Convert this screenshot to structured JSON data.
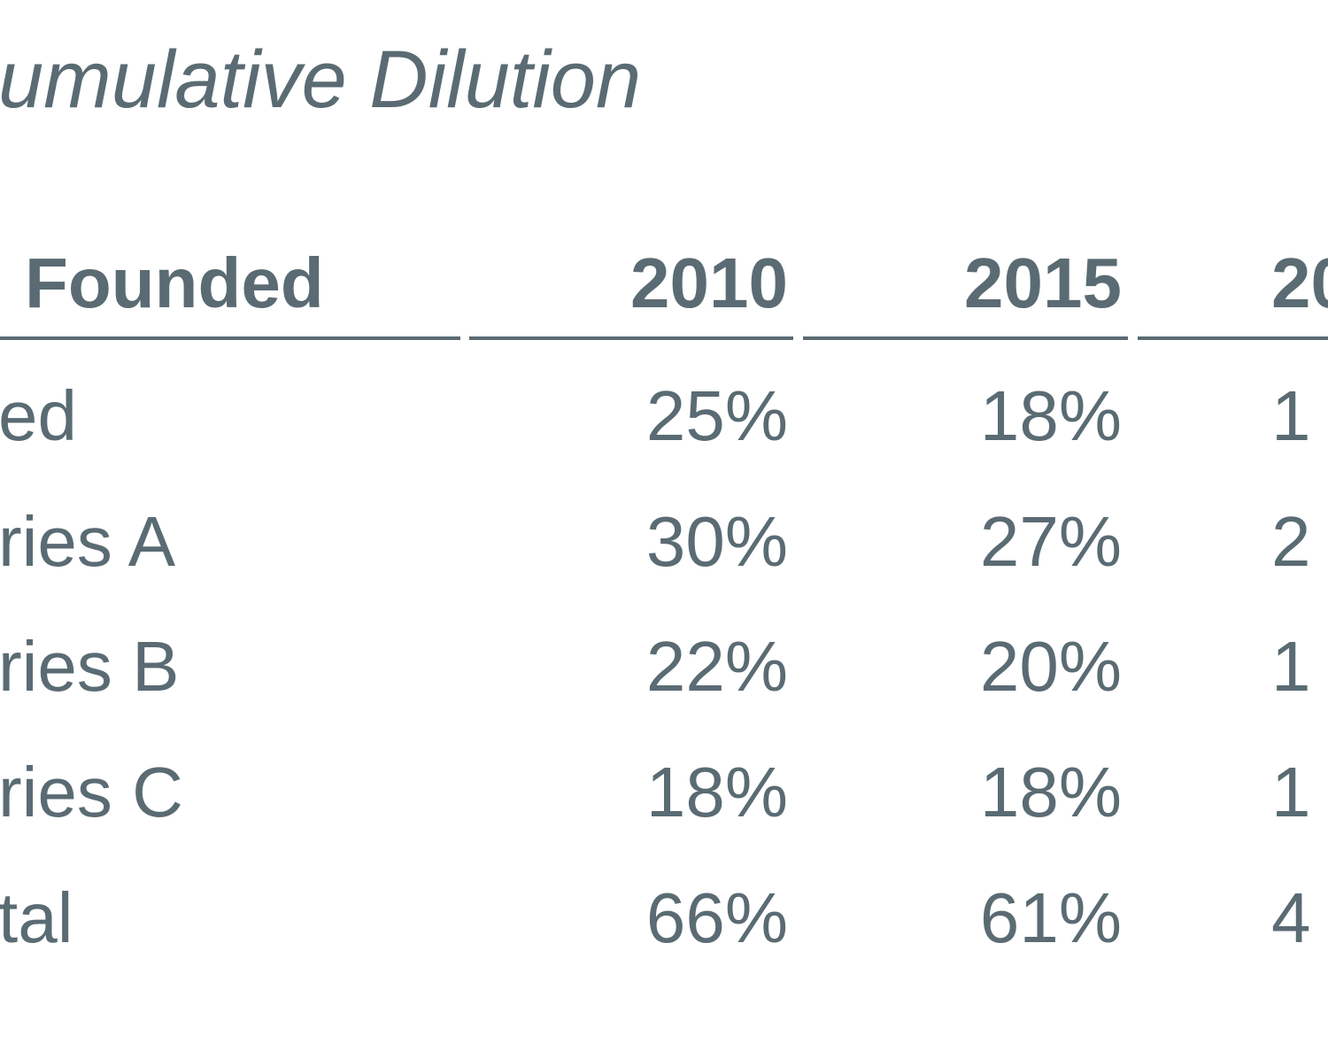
{
  "chart_data": {
    "type": "table",
    "title": "umulative Dilution",
    "columns": [
      "Founded",
      "2010",
      "2015",
      "20"
    ],
    "rows": [
      {
        "label": "ed",
        "values": [
          "25%",
          "18%",
          "1"
        ]
      },
      {
        "label": "ries A",
        "values": [
          "30%",
          "27%",
          "2"
        ]
      },
      {
        "label": "ries B",
        "values": [
          "22%",
          "20%",
          "1"
        ]
      },
      {
        "label": "ries C",
        "values": [
          "18%",
          "18%",
          "1"
        ]
      },
      {
        "label": "tal",
        "values": [
          "66%",
          "61%",
          "4"
        ]
      }
    ]
  },
  "colors": {
    "text": "#5a6b73",
    "rule": "#5a6b73",
    "background": "#ffffff"
  }
}
